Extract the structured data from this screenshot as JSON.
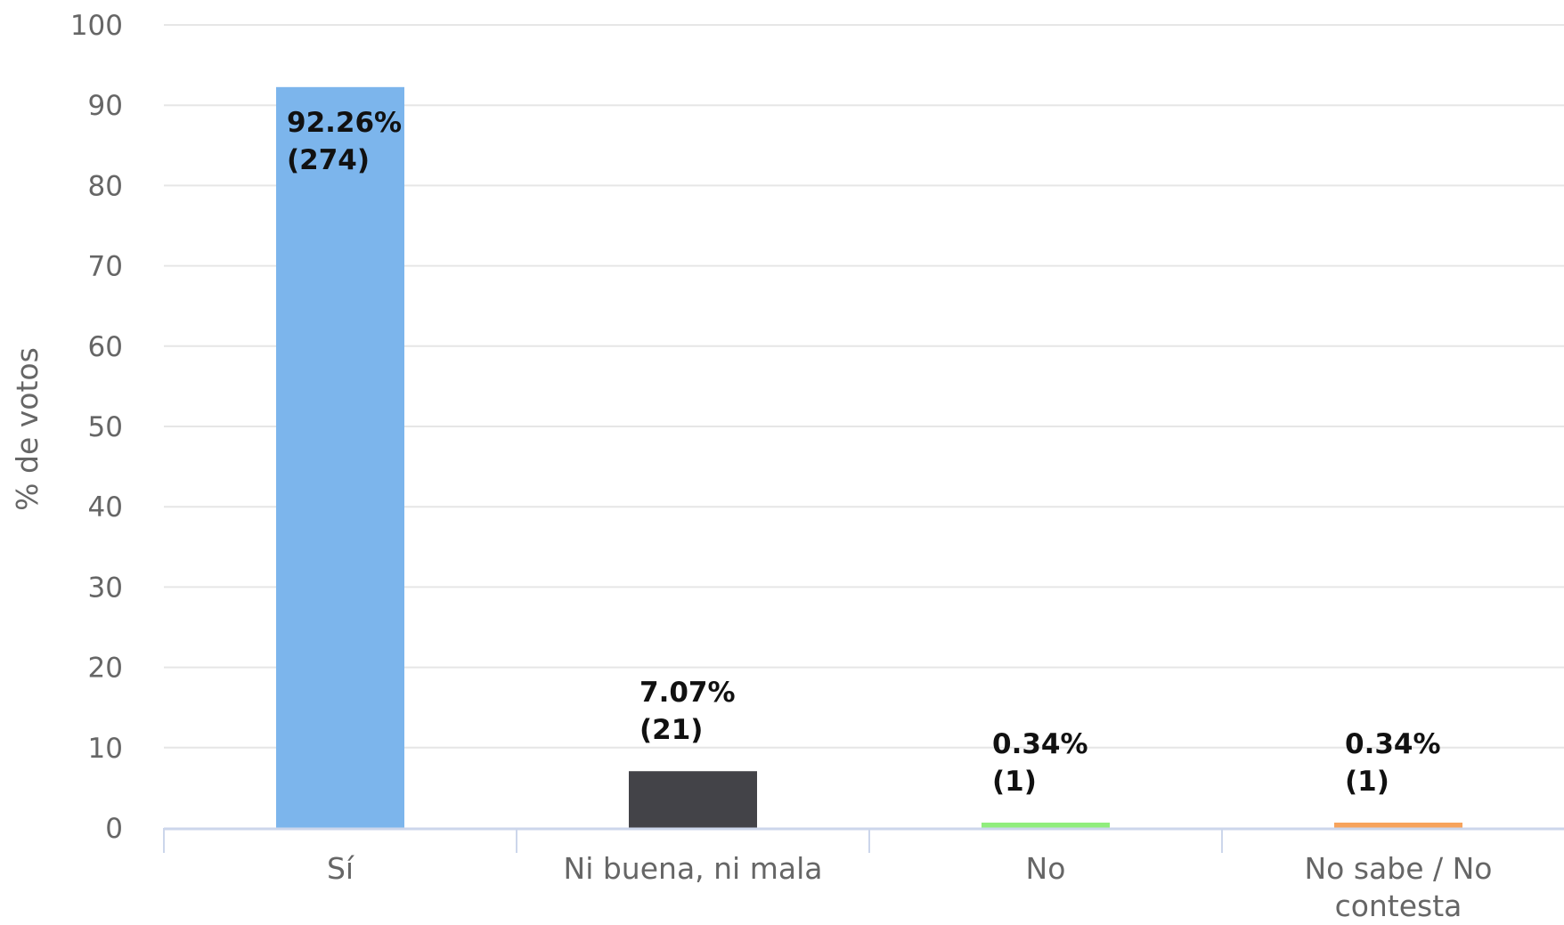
{
  "chart_data": {
    "type": "bar",
    "title": "",
    "xlabel": "",
    "ylabel": "% de votos",
    "ylim": [
      0,
      100
    ],
    "yticks": [
      0,
      10,
      20,
      30,
      40,
      50,
      60,
      70,
      80,
      90,
      100
    ],
    "grid": true,
    "categories": [
      [
        "Sí"
      ],
      [
        "Ni buena, ni mala"
      ],
      [
        "No"
      ],
      [
        "No sabe / No",
        "contesta"
      ]
    ],
    "values": [
      92.26,
      7.07,
      0.34,
      0.34
    ],
    "labels": [
      [
        "92.26%",
        "(274)"
      ],
      [
        "7.07%",
        "(21)"
      ],
      [
        "0.34%",
        "(1)"
      ],
      [
        "0.34%",
        "(1)"
      ]
    ],
    "colors": [
      "#7cb5ec",
      "#434348",
      "#90ed7d",
      "#f7a35c"
    ],
    "gridColor": "#e6e6e6",
    "axisColor": "#ccd6eb"
  }
}
